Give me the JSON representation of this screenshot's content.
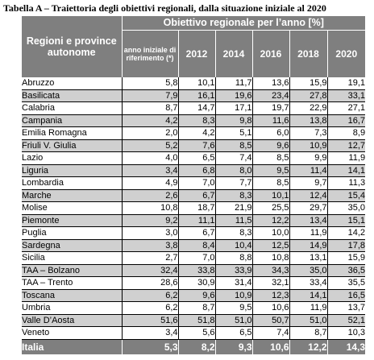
{
  "caption": "Tabella A – Traiettoria degli obiettivi regionali, dalla situazione iniziale al 2020",
  "header": {
    "region_col": "Regioni e province autonome",
    "group_title": "Obiettivo regionale per l’anno  [%]",
    "baseline_col": "anno iniziale di riferimento (*)",
    "years": [
      "2012",
      "2014",
      "2016",
      "2018",
      "2020"
    ]
  },
  "rows": [
    {
      "region": "Abruzzo",
      "values": [
        "5,8",
        "10,1",
        "11,7",
        "13,6",
        "15,9",
        "19,1"
      ],
      "shaded": false
    },
    {
      "region": "Basilicata",
      "values": [
        "7,9",
        "16,1",
        "19,6",
        "23,4",
        "27,8",
        "33,1"
      ],
      "shaded": true
    },
    {
      "region": "Calabria",
      "values": [
        "8,7",
        "14,7",
        "17,1",
        "19,7",
        "22,9",
        "27,1"
      ],
      "shaded": false
    },
    {
      "region": "Campania",
      "values": [
        "4,2",
        "8,3",
        "9,8",
        "11,6",
        "13,8",
        "16,7"
      ],
      "shaded": true
    },
    {
      "region": "Emilia Romagna",
      "values": [
        "2,0",
        "4,2",
        "5,1",
        "6,0",
        "7,3",
        "8,9"
      ],
      "shaded": false
    },
    {
      "region": "Friuli V. Giulia",
      "values": [
        "5,2",
        "7,6",
        "8,5",
        "9,6",
        "10,9",
        "12,7"
      ],
      "shaded": true
    },
    {
      "region": "Lazio",
      "values": [
        "4,0",
        "6,5",
        "7,4",
        "8,5",
        "9,9",
        "11,9"
      ],
      "shaded": false
    },
    {
      "region": "Liguria",
      "values": [
        "3,4",
        "6,8",
        "8,0",
        "9,5",
        "11,4",
        "14,1"
      ],
      "shaded": true
    },
    {
      "region": "Lombardia",
      "values": [
        "4,9",
        "7,0",
        "7,7",
        "8,5",
        "9,7",
        "11,3"
      ],
      "shaded": false
    },
    {
      "region": "Marche",
      "values": [
        "2,6",
        "6,7",
        "8,3",
        "10,1",
        "12,4",
        "15,4"
      ],
      "shaded": true
    },
    {
      "region": "Molise",
      "values": [
        "10,8",
        "18,7",
        "21,9",
        "25,5",
        "29,7",
        "35,0"
      ],
      "shaded": false
    },
    {
      "region": "Piemonte",
      "values": [
        "9,2",
        "11,1",
        "11,5",
        "12,2",
        "13,4",
        "15,1"
      ],
      "shaded": true
    },
    {
      "region": "Puglia",
      "values": [
        "3,0",
        "6,7",
        "8,3",
        "10,0",
        "11,9",
        "14,2"
      ],
      "shaded": false
    },
    {
      "region": "Sardegna",
      "values": [
        "3,8",
        "8,4",
        "10,4",
        "12,5",
        "14,9",
        "17,8"
      ],
      "shaded": true
    },
    {
      "region": "Sicilia",
      "values": [
        "2,7",
        "7,0",
        "8,8",
        "10,8",
        "13,1",
        "15,9"
      ],
      "shaded": false
    },
    {
      "region": "TAA – Bolzano",
      "values": [
        "32,4",
        "33,8",
        "33,9",
        "34,3",
        "35,0",
        "36,5"
      ],
      "shaded": true
    },
    {
      "region": "TAA – Trento",
      "values": [
        "28,6",
        "30,9",
        "31,4",
        "32,1",
        "33,4",
        "35,5"
      ],
      "shaded": false
    },
    {
      "region": "Toscana",
      "values": [
        "6,2",
        "9,6",
        "10,9",
        "12,3",
        "14,1",
        "16,5"
      ],
      "shaded": true
    },
    {
      "region": "Umbria",
      "values": [
        "6,2",
        "8,7",
        "9,5",
        "10,6",
        "11,9",
        "13,7"
      ],
      "shaded": false
    },
    {
      "region": "Valle D’Aosta",
      "values": [
        "51,6",
        "51,8",
        "51,0",
        "50,7",
        "51,0",
        "52,1"
      ],
      "shaded": true
    },
    {
      "region": "Veneto",
      "values": [
        "3,4",
        "5,6",
        "6,5",
        "7,4",
        "8,7",
        "10,3"
      ],
      "shaded": false
    }
  ],
  "total": {
    "region": "Italia",
    "values": [
      "5,3",
      "8,2",
      "9,3",
      "10,6",
      "12,2",
      "14,3"
    ]
  }
}
